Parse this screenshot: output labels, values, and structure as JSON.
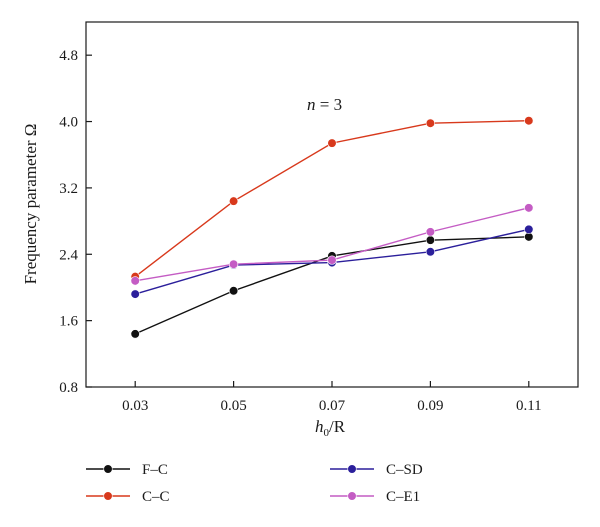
{
  "chart_data": {
    "type": "line",
    "xlabel_main": "h",
    "xlabel_sub": "0",
    "xlabel_rest": "/R",
    "ylabel": "Frequency parameter Ω",
    "annotation_italic": "n",
    "annotation_rest": " = 3",
    "x": [
      0.03,
      0.05,
      0.07,
      0.09,
      0.11
    ],
    "x_tick_labels": [
      "0.03",
      "0.05",
      "0.07",
      "0.09",
      "0.11"
    ],
    "xlim": [
      0.02,
      0.12
    ],
    "y_ticks": [
      0.8,
      1.6,
      2.4,
      3.2,
      4.0,
      4.8
    ],
    "y_tick_labels": [
      "0.8",
      "1.6",
      "2.4",
      "3.2",
      "4.0",
      "4.8"
    ],
    "ylim": [
      0.8,
      5.2
    ],
    "grid": false,
    "legend_position": "bottom",
    "series": [
      {
        "name": "F–C",
        "color": "#111111",
        "values": [
          1.44,
          1.96,
          2.38,
          2.57,
          2.61
        ]
      },
      {
        "name": "C–C",
        "color": "#d8391c",
        "values": [
          2.13,
          3.04,
          3.74,
          3.98,
          4.01
        ]
      },
      {
        "name": "C–SD",
        "color": "#2b1f9b",
        "values": [
          1.92,
          2.27,
          2.3,
          2.43,
          2.7
        ]
      },
      {
        "name": "C–E1",
        "color": "#c45cc4",
        "values": [
          2.08,
          2.28,
          2.33,
          2.67,
          2.96
        ]
      }
    ]
  }
}
